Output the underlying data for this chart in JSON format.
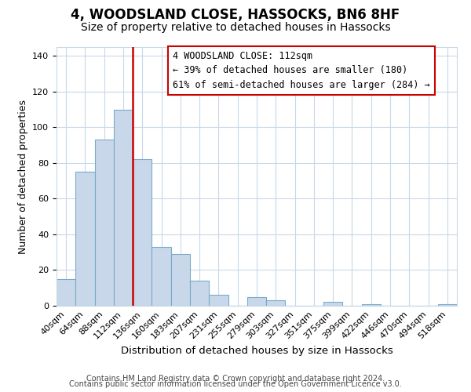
{
  "title": "4, WOODSLAND CLOSE, HASSOCKS, BN6 8HF",
  "subtitle": "Size of property relative to detached houses in Hassocks",
  "xlabel": "Distribution of detached houses by size in Hassocks",
  "ylabel": "Number of detached properties",
  "bar_labels": [
    "40sqm",
    "64sqm",
    "88sqm",
    "112sqm",
    "136sqm",
    "160sqm",
    "183sqm",
    "207sqm",
    "231sqm",
    "255sqm",
    "279sqm",
    "303sqm",
    "327sqm",
    "351sqm",
    "375sqm",
    "399sqm",
    "422sqm",
    "446sqm",
    "470sqm",
    "494sqm",
    "518sqm"
  ],
  "bar_values": [
    15,
    75,
    93,
    110,
    82,
    33,
    29,
    14,
    6,
    0,
    5,
    3,
    0,
    0,
    2,
    0,
    1,
    0,
    0,
    0,
    1
  ],
  "bar_color": "#c8d8ea",
  "bar_edge_color": "#7aaac8",
  "vline_index": 3,
  "vline_color": "#cc0000",
  "annotation_title": "4 WOODSLAND CLOSE: 112sqm",
  "annotation_line1": "← 39% of detached houses are smaller (180)",
  "annotation_line2": "61% of semi-detached houses are larger (284) →",
  "box_edge_color": "#cc0000",
  "ylim": [
    0,
    145
  ],
  "yticks": [
    0,
    20,
    40,
    60,
    80,
    100,
    120,
    140
  ],
  "footer1": "Contains HM Land Registry data © Crown copyright and database right 2024.",
  "footer2": "Contains public sector information licensed under the Open Government Licence v3.0.",
  "title_fontsize": 12,
  "subtitle_fontsize": 10,
  "xlabel_fontsize": 9.5,
  "ylabel_fontsize": 9,
  "footer_fontsize": 7,
  "tick_fontsize": 8,
  "annotation_fontsize": 8.5
}
